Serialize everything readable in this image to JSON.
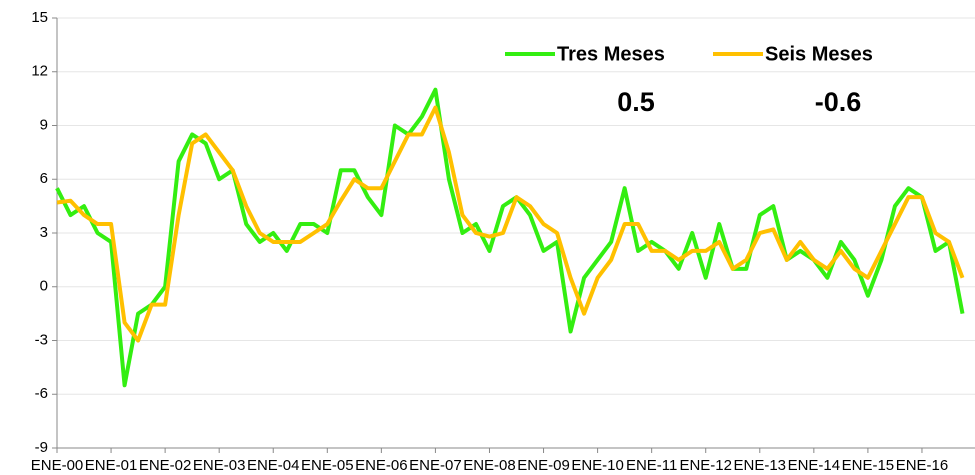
{
  "chart_data": {
    "type": "line",
    "categories": [
      "ENE-00",
      null,
      null,
      null,
      "ENE-01",
      null,
      null,
      null,
      "ENE-02",
      null,
      null,
      null,
      "ENE-03",
      null,
      null,
      null,
      "ENE-04",
      null,
      null,
      null,
      "ENE-05",
      null,
      null,
      null,
      "ENE-06",
      null,
      null,
      null,
      "ENE-07",
      null,
      null,
      null,
      "ENE-08",
      null,
      null,
      null,
      "ENE-09",
      null,
      null,
      null,
      "ENE-10",
      null,
      null,
      null,
      "ENE-11",
      null,
      null,
      null,
      "ENE-12",
      null,
      null,
      null,
      "ENE-13",
      null,
      null,
      null,
      "ENE-14",
      null,
      null,
      null,
      "ENE-15",
      null,
      null,
      null,
      "ENE-16",
      null,
      null,
      null
    ],
    "series": [
      {
        "name": "Tres Meses",
        "color": "#33ee11",
        "values": [
          5.5,
          4.0,
          4.5,
          3.0,
          2.5,
          -5.5,
          -1.5,
          -1.0,
          0.0,
          7.0,
          8.5,
          8.0,
          6.0,
          6.5,
          3.5,
          2.5,
          3.0,
          2.0,
          3.5,
          3.5,
          3.0,
          6.5,
          6.5,
          5.0,
          4.0,
          9.0,
          8.5,
          9.5,
          11.0,
          6.0,
          3.0,
          3.5,
          2.0,
          4.5,
          5.0,
          4.0,
          2.0,
          2.5,
          -2.5,
          0.5,
          1.5,
          2.5,
          5.5,
          2.0,
          2.5,
          2.0,
          1.0,
          3.0,
          0.5,
          3.5,
          1.0,
          1.0,
          4.0,
          4.5,
          1.5,
          2.0,
          1.5,
          0.5,
          2.5,
          1.5,
          -0.5,
          1.5,
          4.5,
          5.5,
          5.0,
          2.0,
          2.5,
          -1.5
        ]
      },
      {
        "name": "Seis Meses",
        "color": "#ffc000",
        "values": [
          4.7,
          4.8,
          4.0,
          3.5,
          3.5,
          -2.0,
          -3.0,
          -1.0,
          -1.0,
          4.0,
          8.0,
          8.5,
          7.5,
          6.5,
          4.5,
          3.0,
          2.5,
          2.5,
          2.5,
          3.0,
          3.5,
          4.8,
          6.0,
          5.5,
          5.5,
          7.0,
          8.5,
          8.5,
          10.0,
          7.5,
          4.0,
          3.0,
          2.8,
          3.0,
          5.0,
          4.5,
          3.5,
          3.0,
          0.5,
          -1.5,
          0.5,
          1.5,
          3.5,
          3.5,
          2.0,
          2.0,
          1.5,
          2.0,
          2.0,
          2.5,
          1.0,
          1.5,
          3.0,
          3.2,
          1.5,
          2.5,
          1.5,
          1.0,
          2.0,
          1.0,
          0.5,
          2.0,
          3.5,
          5.0,
          5.0,
          3.0,
          2.5,
          0.5
        ]
      }
    ],
    "annotations": [
      "0.5",
      "-0.6"
    ],
    "ylim": [
      -9,
      15
    ],
    "yticks": [
      -9,
      -6,
      -3,
      0,
      3,
      6,
      9,
      12,
      15
    ],
    "grid": true
  }
}
